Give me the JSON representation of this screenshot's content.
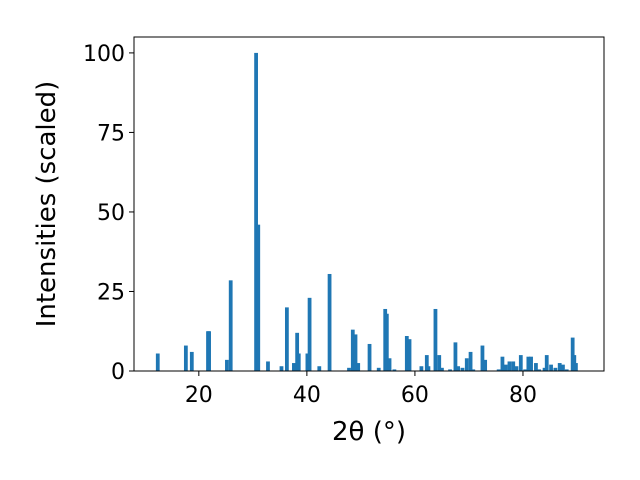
{
  "chart_data": {
    "type": "bar",
    "title": "",
    "xlabel": "2θ (°)",
    "ylabel": "Intensities (scaled)",
    "xlim": [
      8,
      95
    ],
    "ylim": [
      0,
      105
    ],
    "grid": false,
    "bar_color": "#1f77b4",
    "bar_width": 0.7,
    "xticks": [
      20,
      40,
      60,
      80
    ],
    "yticks": [
      0,
      25,
      50,
      75,
      100
    ],
    "x": [
      12.4,
      17.6,
      18.7,
      21.7,
      21.9,
      25.2,
      25.9,
      30.6,
      31.0,
      32.8,
      35.3,
      36.3,
      37.6,
      38.2,
      38.5,
      40.1,
      40.5,
      42.3,
      44.2,
      47.8,
      48.5,
      49.0,
      49.5,
      51.6,
      53.3,
      54.5,
      54.8,
      55.3,
      56.2,
      58.5,
      59.0,
      61.2,
      62.2,
      62.5,
      63.8,
      64.5,
      65.0,
      66.5,
      67.5,
      68.0,
      68.8,
      69.6,
      70.3,
      70.8,
      72.5,
      73.0,
      75.5,
      76.2,
      76.8,
      77.5,
      78.2,
      78.8,
      79.6,
      80.4,
      81.0,
      81.5,
      82.4,
      83.0,
      84.0,
      84.4,
      85.2,
      86.0,
      86.8,
      87.4,
      88.1,
      89.2,
      89.5,
      89.8
    ],
    "values": [
      5.5,
      8.0,
      6.0,
      12.5,
      12.5,
      3.5,
      28.5,
      100,
      46,
      3.0,
      1.5,
      20.0,
      2.5,
      12.0,
      5.5,
      5.5,
      23.0,
      1.5,
      30.5,
      1.0,
      13.0,
      11.5,
      2.5,
      8.5,
      1.0,
      19.5,
      18.0,
      4.0,
      0.5,
      11.0,
      10.0,
      1.5,
      5.0,
      1.5,
      19.5,
      5.0,
      1.0,
      0.5,
      9.0,
      1.5,
      1.0,
      4.0,
      6.0,
      0.5,
      8.0,
      3.5,
      0.5,
      4.5,
      2.0,
      3.0,
      3.0,
      1.5,
      5.0,
      0.5,
      4.5,
      4.5,
      2.5,
      0.5,
      1.0,
      5.0,
      2.0,
      1.0,
      2.5,
      2.0,
      0.5,
      10.5,
      5.0,
      2.5
    ]
  }
}
